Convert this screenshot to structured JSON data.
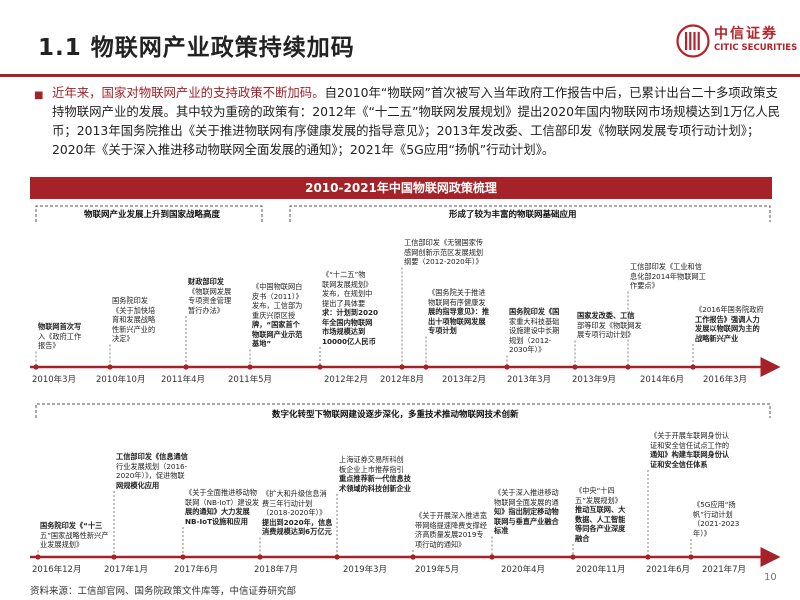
{
  "header": {
    "title": "1.1 物联网产业政策持续加码",
    "logo_name": "中信证券",
    "logo_en": "CITIC SECURITIES",
    "accent_color": "#a42228"
  },
  "intro": {
    "highlight": "近年来，国家对物联网产业的支持政策不断加码。",
    "body": "自2010年“物联网”首次被写入当年政府工作报告中后，已累计出台二十多项政策支持物联网产业的发展。其中较为重磅的政策有：2012年《“十二五”物联网发展规划》提出2020年国内物联网市场规模达到1万亿人民币；2013年国务院推出《关于推进物联网有序健康发展的指导意见》；2013年发改委、工信部印发《物联网发展专项行动计划》；2020年《关于深入推进移动物联网全面发展的通知》；2021年《5G应用“扬帆”行动计划》。"
  },
  "banner": "2010-2021年中国物联网政策梳理",
  "upper": {
    "phase1": "物联网产业发展上升到国家战略高度",
    "phase2": "形成了较为丰富的物联网基础应用",
    "events": [
      {
        "date": "2010年3月",
        "lines": [
          "物联网首次写",
          "入《政府工作",
          "报告》"
        ],
        "bold": [
          0
        ]
      },
      {
        "date": "2010年10月",
        "lines": [
          "国务院印发",
          "《关于加快培",
          "育和发展战略",
          "性新兴产业的",
          "决定》"
        ],
        "bold": []
      },
      {
        "date": "2011年4月",
        "lines": [
          "财政部印发",
          "《物联网发展",
          "专项资金管理",
          "暂行办法》"
        ],
        "bold": [
          0
        ]
      },
      {
        "date": "2011年5月",
        "lines": [
          "《中国物联网白",
          "皮书（2011）》",
          "发布，工信部为",
          "重庆兴原区授",
          "牌，“国家首个",
          "物联网产业示范",
          "基地”"
        ],
        "bold": [
          4,
          5,
          6
        ]
      },
      {
        "date": "2012年2月",
        "lines": [
          "《“十二五”物",
          "联网发展规划》",
          "发布，在规划中",
          "提出了具体要",
          "求：计划到2020",
          "年全国内物联网",
          "市场规模达到",
          "10000亿人民币"
        ],
        "bold": [
          4,
          5,
          6,
          7
        ]
      },
      {
        "date": "2012年8月",
        "lines": [
          "工信部印发《无锡国家传",
          "感网创新示范区发展规划",
          "纲要（2012-2020年）》"
        ],
        "bold": []
      },
      {
        "date": "2013年2月",
        "lines": [
          "《国务院关于推进",
          "物联网有序健康发",
          "展的指导意见》：推",
          "出十项物联网发展",
          "专项计划"
        ],
        "bold": [
          2,
          3,
          4
        ]
      },
      {
        "date": "2013年3月",
        "lines": [
          "国务院印发《国",
          "家重大科技基础",
          "设施建设中长期",
          "规划（2012-",
          "2030年）》"
        ],
        "bold": [
          0
        ]
      },
      {
        "date": "2013年9月",
        "lines": [
          "国家发改委、工信",
          "部等印发《物联网发",
          "展专项行动计划》"
        ],
        "bold": [
          0
        ]
      },
      {
        "date": "2014年6月",
        "lines": [
          "工信部印发《工业和信",
          "息化部2014年物联网工",
          "作要点》"
        ],
        "bold": []
      },
      {
        "date": "2016年3月",
        "lines": [
          "《2016年国务院政府",
          "工作报告》强调人力",
          "发展以物联网为主的",
          "战略新兴产业"
        ],
        "bold": [
          1,
          2,
          3
        ]
      }
    ]
  },
  "lower": {
    "phase3": "数字化转型下物联网建设逐步深化，多重技术推动物联网技术创新",
    "events": [
      {
        "date": "2016年12月",
        "lines": [
          "国务院印发《“十三",
          "五”国家战略性新兴产",
          "业发展规划》"
        ],
        "bold": [
          0
        ]
      },
      {
        "date": "2017年1月",
        "lines": [
          "工信部印发《信息通信",
          "行业发展规划（2016-",
          "2020年）》，促进物联",
          "网规模化应用"
        ],
        "bold": [
          0,
          3
        ]
      },
      {
        "date": "2017年6月",
        "lines": [
          "《关于全面推进移动物",
          "联网（NB-IoT）建设发",
          "展的通知》大力发展",
          "NB-IoT设施和应用"
        ],
        "bold": [
          2,
          3
        ]
      },
      {
        "date": "2018年7月",
        "lines": [
          "《扩大和升级信息消",
          "费三年行动计划",
          "（2018-2020年）》",
          "提出到2020年，信息",
          "消费规模达到6万亿元"
        ],
        "bold": [
          3,
          4
        ]
      },
      {
        "date": "2019年3月",
        "lines": [
          "上海证券交易所科创",
          "板企业上市推荐指引",
          "重点推荐新一代信息技",
          "术领域的科技创新企业"
        ],
        "bold": [
          2,
          3
        ]
      },
      {
        "date": "2019年5月",
        "lines": [
          "《关于开展深入推进宽",
          "带网络提速降费支撑经",
          "济高质量发展2019专",
          "项行动的通知》"
        ],
        "bold": []
      },
      {
        "date": "2020年4月",
        "lines": [
          "《关于深入推进移动",
          "物联网全面发展的通",
          "知》指出制定移动物",
          "联网与垂直产业融合",
          "标准"
        ],
        "bold": [
          2,
          3,
          4
        ]
      },
      {
        "date": "2020年11月",
        "lines": [
          "《中央“十四",
          "五”发展规划》",
          "推动互联网、大",
          "数据、人工智能",
          "等同各产业深度",
          "融合"
        ],
        "bold": [
          2,
          3,
          4,
          5
        ]
      },
      {
        "date": "2021年6月",
        "lines": [
          "《关于开展车联网身份认",
          "证和安全信任试点工作的",
          "通知》构建车联网身份认",
          "证和安全信任体系"
        ],
        "bold": [
          2,
          3
        ]
      },
      {
        "date": "2021年7月",
        "lines": [
          "《5G应用“扬",
          "帆”行动计划",
          "（2021-2023",
          "年）》"
        ],
        "bold": []
      }
    ]
  },
  "footer": {
    "source": "资料来源：工信部官网、国务院政策文件库等，中信证券研究部",
    "page_number": "10"
  }
}
